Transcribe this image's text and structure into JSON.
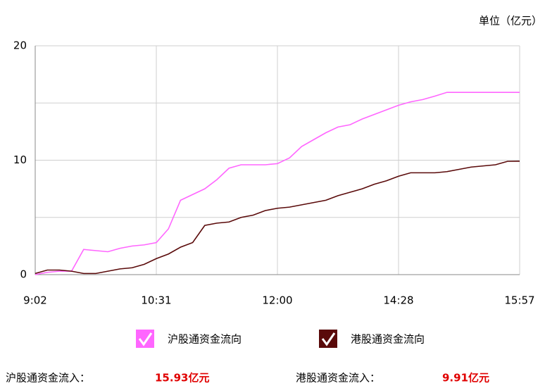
{
  "chart_data": {
    "type": "line",
    "unit": "单位（亿元）",
    "categories": [
      "9:02",
      null,
      null,
      null,
      null,
      null,
      null,
      null,
      null,
      null,
      "10:31",
      null,
      null,
      null,
      null,
      null,
      null,
      null,
      null,
      null,
      "12:00",
      null,
      null,
      null,
      null,
      null,
      null,
      null,
      null,
      null,
      "14:28",
      null,
      null,
      null,
      null,
      null,
      null,
      null,
      null,
      null,
      "15:57"
    ],
    "ylim": [
      0,
      20
    ],
    "yticks": [
      0,
      10,
      20
    ],
    "grid": true,
    "series": [
      {
        "name": "沪股通资金流向",
        "color": "#ff66ff",
        "values": [
          0,
          0.2,
          0.3,
          0.3,
          2.2,
          2.1,
          2.0,
          2.3,
          2.5,
          2.6,
          2.8,
          4.0,
          6.5,
          7.0,
          7.5,
          8.3,
          9.3,
          9.6,
          9.6,
          9.6,
          9.7,
          10.2,
          11.2,
          11.8,
          12.4,
          12.9,
          13.1,
          13.6,
          14.0,
          14.4,
          14.8,
          15.1,
          15.3,
          15.6,
          15.93,
          15.93,
          15.93,
          15.93,
          15.93,
          15.93,
          15.93
        ]
      },
      {
        "name": "港股通资金流向",
        "color": "#5a0a0a",
        "values": [
          0.1,
          0.4,
          0.4,
          0.3,
          0.1,
          0.1,
          0.3,
          0.5,
          0.6,
          0.9,
          1.4,
          1.8,
          2.4,
          2.8,
          4.3,
          4.5,
          4.6,
          5.0,
          5.2,
          5.6,
          5.8,
          5.9,
          6.1,
          6.3,
          6.5,
          6.9,
          7.2,
          7.5,
          7.9,
          8.2,
          8.6,
          8.9,
          8.9,
          8.9,
          9.0,
          9.2,
          9.4,
          9.5,
          9.6,
          9.9,
          9.91
        ]
      }
    ],
    "summary": [
      {
        "label": "沪股通资金流入：",
        "value": "15.93亿元"
      },
      {
        "label": "港股通资金流入：",
        "value": "9.91亿元"
      }
    ]
  }
}
